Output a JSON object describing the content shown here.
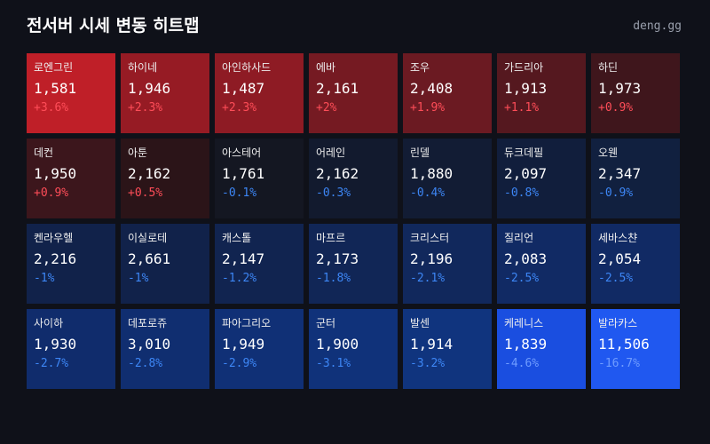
{
  "header": {
    "title": "전서버 시세 변동 히트맵",
    "brand": "deng.gg"
  },
  "cells": [
    {
      "name": "로엔그린",
      "price": "1,581",
      "change": "+3.6%",
      "color": "#bf1f28"
    },
    {
      "name": "하이네",
      "price": "1,946",
      "change": "+2.3%",
      "color": "#961b24"
    },
    {
      "name": "아인하사드",
      "price": "1,487",
      "change": "+2.3%",
      "color": "#8e1b24"
    },
    {
      "name": "에바",
      "price": "2,161",
      "change": "+2%",
      "color": "#751a22"
    },
    {
      "name": "조우",
      "price": "2,408",
      "change": "+1.9%",
      "color": "#6b1a22"
    },
    {
      "name": "가드리아",
      "price": "1,913",
      "change": "+1.1%",
      "color": "#55181f"
    },
    {
      "name": "하딘",
      "price": "1,973",
      "change": "+0.9%",
      "color": "#3f161c"
    },
    {
      "name": "데컨",
      "price": "1,950",
      "change": "+0.9%",
      "color": "#3c161c"
    },
    {
      "name": "아툰",
      "price": "2,162",
      "change": "+0.5%",
      "color": "#2b1418"
    },
    {
      "name": "아스테어",
      "price": "1,761",
      "change": "-0.1%",
      "color": "#141722"
    },
    {
      "name": "어레인",
      "price": "2,162",
      "change": "-0.3%",
      "color": "#121a2e"
    },
    {
      "name": "린델",
      "price": "1,880",
      "change": "-0.4%",
      "color": "#121c34"
    },
    {
      "name": "듀크데필",
      "price": "2,097",
      "change": "-0.8%",
      "color": "#111e3c"
    },
    {
      "name": "오웬",
      "price": "2,347",
      "change": "-0.9%",
      "color": "#11203f"
    },
    {
      "name": "켄라우헬",
      "price": "2,216",
      "change": "-1%",
      "color": "#11224a"
    },
    {
      "name": "이실로테",
      "price": "2,661",
      "change": "-1%",
      "color": "#11224a"
    },
    {
      "name": "캐스톨",
      "price": "2,147",
      "change": "-1.2%",
      "color": "#112450"
    },
    {
      "name": "마프르",
      "price": "2,173",
      "change": "-1.8%",
      "color": "#112656"
    },
    {
      "name": "크리스터",
      "price": "2,196",
      "change": "-2.1%",
      "color": "#11285c"
    },
    {
      "name": "질리언",
      "price": "2,083",
      "change": "-2.5%",
      "color": "#112a64"
    },
    {
      "name": "세바스챤",
      "price": "2,054",
      "change": "-2.5%",
      "color": "#112a64"
    },
    {
      "name": "사이하",
      "price": "1,930",
      "change": "-2.7%",
      "color": "#102c6c"
    },
    {
      "name": "데포로쥬",
      "price": "3,010",
      "change": "-2.8%",
      "color": "#102e70"
    },
    {
      "name": "파아그리오",
      "price": "1,949",
      "change": "-2.9%",
      "color": "#103076"
    },
    {
      "name": "군터",
      "price": "1,900",
      "change": "-3.1%",
      "color": "#10327a"
    },
    {
      "name": "발센",
      "price": "1,914",
      "change": "-3.2%",
      "color": "#10347e"
    },
    {
      "name": "케레니스",
      "price": "1,839",
      "change": "-4.6%",
      "color": "#1a4ee0"
    },
    {
      "name": "발라카스",
      "price": "11,506",
      "change": "-16.7%",
      "color": "#2058f0"
    }
  ]
}
